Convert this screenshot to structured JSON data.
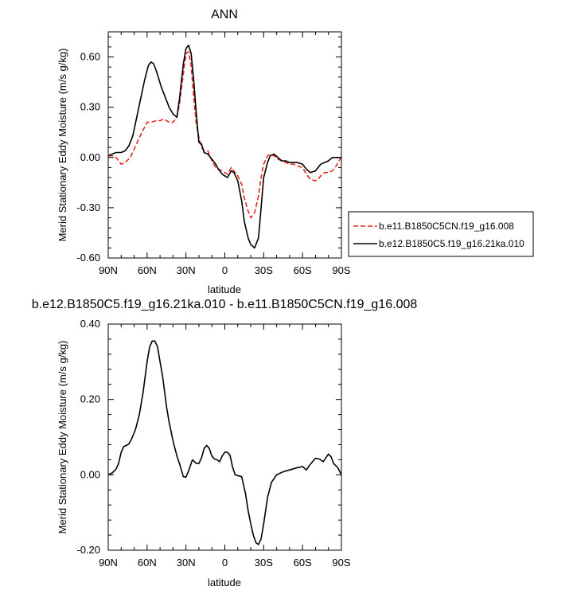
{
  "chart_data": [
    {
      "type": "line",
      "title": "ANN",
      "xlabel": "latitude",
      "ylabel": "Merid Stationary Eddy Moisture (m/s g/kg)",
      "xlim": [
        90,
        -90
      ],
      "ylim": [
        -0.6,
        0.75
      ],
      "x_ticks": [
        {
          "value": 90,
          "label": "90N"
        },
        {
          "value": 60,
          "label": "60N"
        },
        {
          "value": 30,
          "label": "30N"
        },
        {
          "value": 0,
          "label": "0"
        },
        {
          "value": -30,
          "label": "30S"
        },
        {
          "value": -60,
          "label": "60S"
        },
        {
          "value": -90,
          "label": "90S"
        }
      ],
      "y_ticks": [
        {
          "value": 0.6,
          "label": "0.60"
        },
        {
          "value": 0.3,
          "label": "0.30"
        },
        {
          "value": 0.0,
          "label": "0.00"
        },
        {
          "value": -0.3,
          "label": "-0.30"
        },
        {
          "value": -0.6,
          "label": "-0.60"
        }
      ],
      "legend_position": "outside-right",
      "series": [
        {
          "name": "b.e11.B1850C5CN.f19_g16.008",
          "color": "#e8251f",
          "dash": "dashed",
          "x": [
            90,
            87,
            84,
            80,
            77,
            73,
            70,
            67,
            64,
            60,
            57,
            53,
            50,
            47,
            45,
            43,
            40,
            37,
            35,
            32,
            30,
            28,
            26,
            24,
            22,
            20,
            18,
            16,
            13,
            10,
            7,
            5,
            2,
            0,
            -2,
            -5,
            -7,
            -10,
            -13,
            -15,
            -18,
            -20,
            -23,
            -26,
            -28,
            -30,
            -33,
            -35,
            -38,
            -41,
            -44,
            -47,
            -50,
            -53,
            -56,
            -60,
            -63,
            -66,
            -70,
            -72,
            -74,
            -77,
            -80,
            -83,
            -86,
            -89,
            -90
          ],
          "y": [
            0.01,
            0.01,
            0.0,
            -0.04,
            -0.03,
            0.0,
            0.05,
            0.1,
            0.15,
            0.21,
            0.21,
            0.22,
            0.22,
            0.23,
            0.22,
            0.21,
            0.21,
            0.24,
            0.32,
            0.5,
            0.62,
            0.63,
            0.55,
            0.36,
            0.2,
            0.12,
            0.06,
            0.04,
            0.04,
            -0.02,
            -0.06,
            -0.07,
            -0.08,
            -0.09,
            -0.1,
            -0.06,
            -0.08,
            -0.11,
            -0.16,
            -0.24,
            -0.32,
            -0.36,
            -0.33,
            -0.23,
            -0.12,
            -0.04,
            0.01,
            0.02,
            0.01,
            -0.01,
            -0.02,
            -0.03,
            -0.04,
            -0.04,
            -0.05,
            -0.06,
            -0.1,
            -0.13,
            -0.14,
            -0.13,
            -0.11,
            -0.09,
            -0.09,
            -0.08,
            -0.05,
            -0.01,
            0.0
          ]
        },
        {
          "name": "b.e12.B1850C5.f19_g16.21ka.010",
          "color": "#000000",
          "dash": "solid",
          "x": [
            90,
            87,
            84,
            80,
            77,
            74,
            71,
            68,
            65,
            62,
            59,
            57,
            55,
            53,
            51,
            49,
            47,
            45,
            43,
            40,
            37,
            35,
            32,
            30,
            28,
            26,
            24,
            22,
            20,
            18,
            16,
            13,
            10,
            7,
            5,
            2,
            0,
            -2,
            -5,
            -7,
            -10,
            -13,
            -15,
            -18,
            -20,
            -23,
            -26,
            -28,
            -30,
            -33,
            -35,
            -38,
            -41,
            -44,
            -47,
            -50,
            -53,
            -56,
            -60,
            -63,
            -66,
            -70,
            -72,
            -74,
            -77,
            -80,
            -83,
            -86,
            -89,
            -90
          ],
          "y": [
            0.01,
            0.02,
            0.03,
            0.03,
            0.04,
            0.07,
            0.13,
            0.24,
            0.35,
            0.46,
            0.55,
            0.57,
            0.56,
            0.52,
            0.47,
            0.42,
            0.38,
            0.34,
            0.3,
            0.26,
            0.24,
            0.35,
            0.56,
            0.65,
            0.67,
            0.62,
            0.46,
            0.26,
            0.09,
            0.08,
            0.03,
            0.02,
            -0.01,
            -0.04,
            -0.07,
            -0.1,
            -0.11,
            -0.12,
            -0.08,
            -0.09,
            -0.14,
            -0.26,
            -0.38,
            -0.48,
            -0.52,
            -0.54,
            -0.48,
            -0.3,
            -0.12,
            -0.03,
            0.01,
            0.02,
            0.0,
            -0.02,
            -0.02,
            -0.03,
            -0.03,
            -0.03,
            -0.04,
            -0.07,
            -0.09,
            -0.08,
            -0.06,
            -0.04,
            -0.03,
            -0.02,
            0.0,
            0.0,
            0.0,
            0.0
          ]
        }
      ]
    },
    {
      "type": "line",
      "title": "b.e12.B1850C5.f19_g16.21ka.010 - b.e11.B1850C5CN.f19_g16.008",
      "xlabel": "latitude",
      "ylabel": "Merid Stationary Eddy Moisture (m/s g/kg)",
      "xlim": [
        90,
        -90
      ],
      "ylim": [
        -0.2,
        0.4
      ],
      "x_ticks": [
        {
          "value": 90,
          "label": "90N"
        },
        {
          "value": 60,
          "label": "60N"
        },
        {
          "value": 30,
          "label": "30N"
        },
        {
          "value": 0,
          "label": "0"
        },
        {
          "value": -30,
          "label": "30S"
        },
        {
          "value": -60,
          "label": "60S"
        },
        {
          "value": -90,
          "label": "90S"
        }
      ],
      "y_ticks": [
        {
          "value": 0.4,
          "label": "0.40"
        },
        {
          "value": 0.2,
          "label": "0.20"
        },
        {
          "value": 0.0,
          "label": "0.00"
        },
        {
          "value": -0.2,
          "label": "-0.20"
        }
      ],
      "series": [
        {
          "color": "#000000",
          "dash": "solid",
          "x": [
            90,
            87,
            84,
            82,
            80,
            78,
            76,
            74,
            72,
            69,
            66,
            63,
            60,
            58,
            56,
            54,
            52,
            50,
            48,
            45,
            43,
            40,
            37,
            35,
            32,
            30,
            28,
            25,
            22,
            20,
            18,
            16,
            14,
            12,
            10,
            8,
            6,
            4,
            2,
            0,
            -2,
            -4,
            -6,
            -8,
            -10,
            -13,
            -16,
            -18,
            -20,
            -22,
            -24,
            -26,
            -28,
            -30,
            -33,
            -36,
            -40,
            -45,
            -50,
            -55,
            -60,
            -63,
            -66,
            -70,
            -73,
            -76,
            -80,
            -82,
            -84,
            -87,
            -90
          ],
          "y": [
            0.0,
            0.005,
            0.015,
            0.03,
            0.06,
            0.075,
            0.078,
            0.082,
            0.095,
            0.12,
            0.16,
            0.22,
            0.3,
            0.34,
            0.355,
            0.355,
            0.34,
            0.3,
            0.26,
            0.18,
            0.14,
            0.09,
            0.05,
            0.03,
            -0.005,
            -0.006,
            0.01,
            0.04,
            0.03,
            0.03,
            0.045,
            0.07,
            0.078,
            0.07,
            0.05,
            0.042,
            0.04,
            0.035,
            0.05,
            0.06,
            0.06,
            0.052,
            0.02,
            0.0,
            -0.002,
            -0.005,
            -0.05,
            -0.095,
            -0.13,
            -0.16,
            -0.18,
            -0.185,
            -0.17,
            -0.13,
            -0.06,
            -0.02,
            0.0,
            0.008,
            0.013,
            0.018,
            0.022,
            0.013,
            0.028,
            0.044,
            0.042,
            0.035,
            0.055,
            0.048,
            0.03,
            0.02,
            0.0
          ]
        }
      ]
    }
  ]
}
